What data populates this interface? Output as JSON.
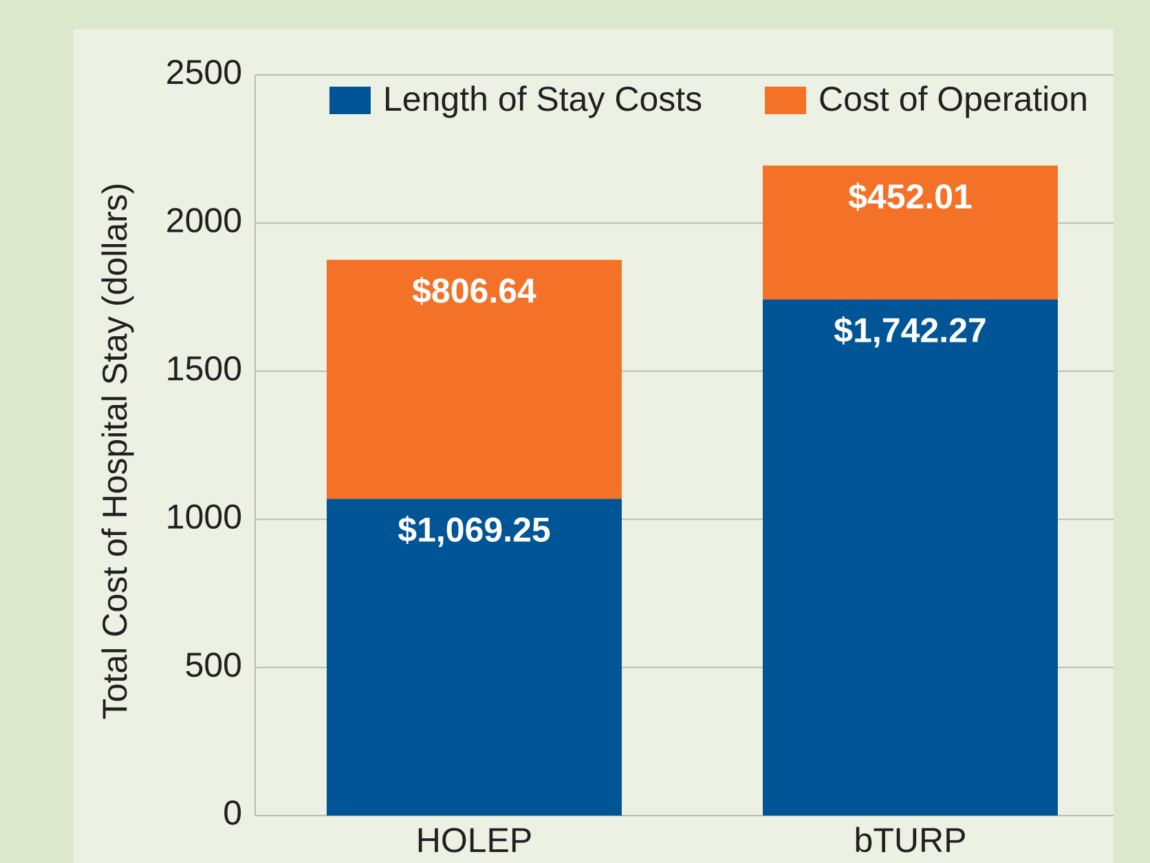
{
  "chart_data": {
    "type": "stacked_bar",
    "y_label": "Total Cost of Hospital Stay (dollars)",
    "categories": [
      "HOLEP",
      "bTURP"
    ],
    "series": [
      {
        "name": "Length of Stay Costs",
        "color": "#005596",
        "values": [
          1069.25,
          1742.27
        ],
        "value_labels": [
          "$1,069.25",
          "$1,742.27"
        ]
      },
      {
        "name": "Cost of Operation",
        "color": "#f47228",
        "values": [
          806.64,
          452.01
        ],
        "value_labels": [
          "$806.64",
          "$452.01"
        ]
      }
    ],
    "ylim": [
      0,
      2500
    ],
    "yticks": [
      0,
      500,
      1000,
      1500,
      2000,
      2500
    ],
    "grid": true,
    "legend": "top"
  }
}
